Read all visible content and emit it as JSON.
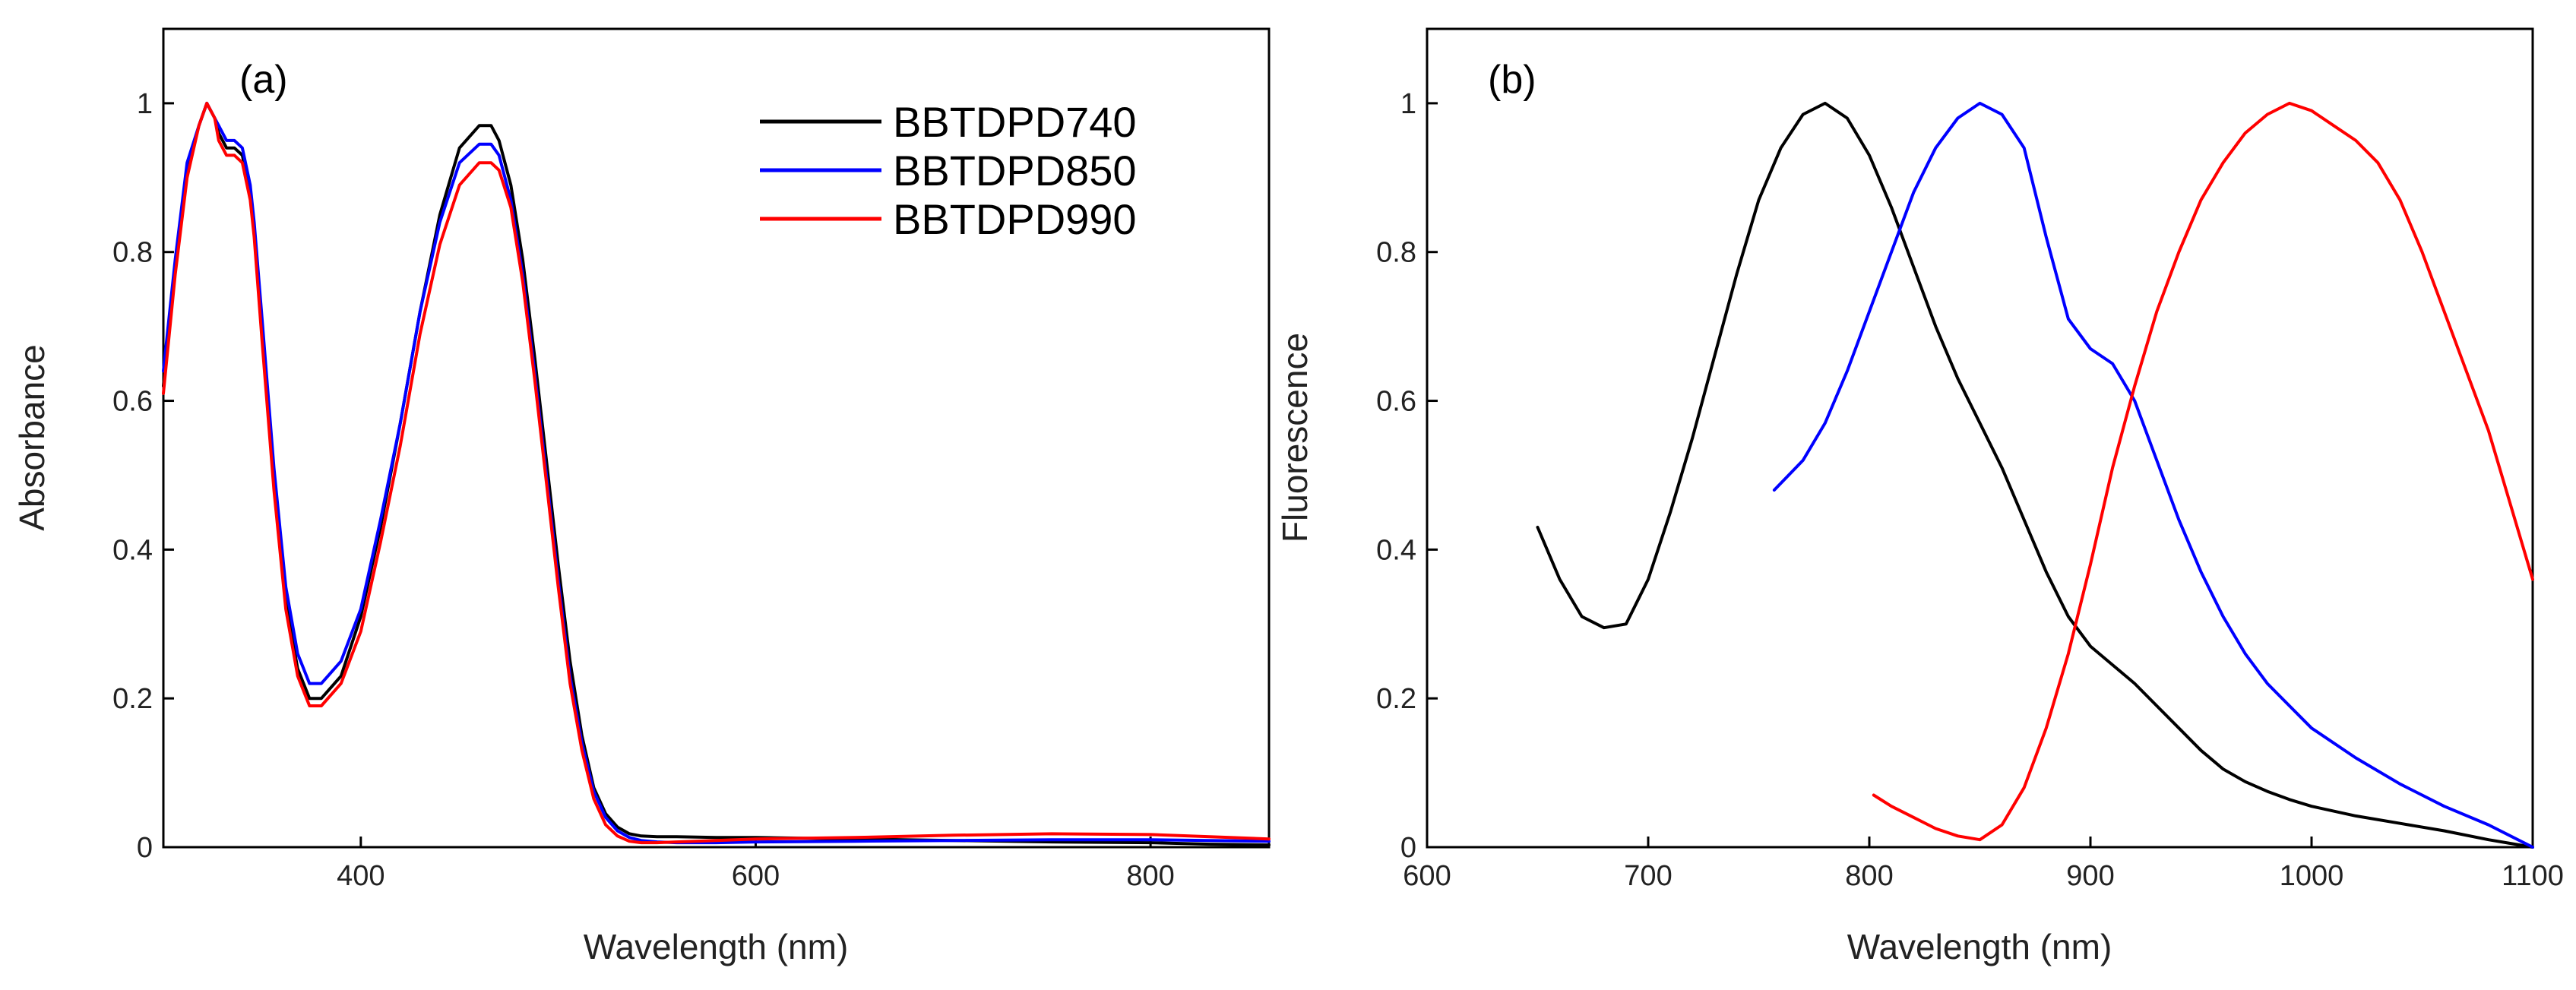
{
  "chart_data": [
    {
      "id": "a",
      "type": "line",
      "panel_label": "(a)",
      "title": "",
      "xlabel": "Wavelength (nm)",
      "ylabel": "Absorbance",
      "xlim": [
        300,
        860
      ],
      "ylim": [
        0,
        1.1
      ],
      "xticks": [
        400,
        600,
        800
      ],
      "yticks": [
        0,
        0.2,
        0.4,
        0.6,
        0.8,
        1
      ],
      "ytick_labels": [
        "0",
        "0.2",
        "0.4",
        "0.6",
        "0.8",
        "1"
      ],
      "grid": false,
      "legend_position": "top-right",
      "series": [
        {
          "name": "BBTDPD740",
          "color": "#000000",
          "x": [
            300,
            306,
            312,
            318,
            322,
            326,
            328,
            332,
            336,
            340,
            344,
            346,
            350,
            356,
            362,
            368,
            374,
            380,
            390,
            400,
            410,
            420,
            430,
            440,
            450,
            460,
            466,
            470,
            476,
            482,
            488,
            494,
            500,
            506,
            512,
            518,
            524,
            530,
            536,
            542,
            550,
            560,
            580,
            600,
            650,
            700,
            750,
            800,
            830,
            860
          ],
          "values": [
            0.62,
            0.78,
            0.91,
            0.97,
            1.0,
            0.98,
            0.96,
            0.94,
            0.94,
            0.93,
            0.88,
            0.83,
            0.69,
            0.49,
            0.33,
            0.24,
            0.2,
            0.2,
            0.23,
            0.31,
            0.43,
            0.57,
            0.72,
            0.85,
            0.94,
            0.97,
            0.97,
            0.95,
            0.89,
            0.79,
            0.66,
            0.52,
            0.38,
            0.25,
            0.15,
            0.08,
            0.045,
            0.027,
            0.018,
            0.015,
            0.014,
            0.014,
            0.013,
            0.013,
            0.011,
            0.009,
            0.007,
            0.006,
            0.004,
            0.003
          ]
        },
        {
          "name": "BBTDPD850",
          "color": "#0000ff",
          "x": [
            300,
            306,
            312,
            318,
            322,
            326,
            328,
            332,
            336,
            340,
            344,
            346,
            350,
            356,
            362,
            368,
            374,
            380,
            390,
            400,
            410,
            420,
            430,
            440,
            450,
            460,
            466,
            470,
            476,
            482,
            488,
            494,
            500,
            506,
            512,
            518,
            524,
            530,
            536,
            542,
            550,
            560,
            580,
            600,
            650,
            700,
            750,
            800,
            830,
            860
          ],
          "values": [
            0.64,
            0.79,
            0.92,
            0.97,
            1.0,
            0.98,
            0.97,
            0.95,
            0.95,
            0.94,
            0.89,
            0.84,
            0.71,
            0.51,
            0.35,
            0.26,
            0.22,
            0.22,
            0.25,
            0.32,
            0.44,
            0.57,
            0.72,
            0.84,
            0.92,
            0.945,
            0.945,
            0.93,
            0.87,
            0.77,
            0.64,
            0.5,
            0.36,
            0.23,
            0.14,
            0.075,
            0.04,
            0.022,
            0.013,
            0.009,
            0.007,
            0.006,
            0.006,
            0.007,
            0.008,
            0.009,
            0.01,
            0.01,
            0.009,
            0.008
          ]
        },
        {
          "name": "BBTDPD990",
          "color": "#ff0000",
          "x": [
            300,
            306,
            312,
            318,
            322,
            326,
            328,
            332,
            336,
            340,
            344,
            346,
            350,
            356,
            362,
            368,
            374,
            380,
            390,
            400,
            410,
            420,
            430,
            440,
            450,
            460,
            466,
            470,
            476,
            482,
            488,
            494,
            500,
            506,
            512,
            518,
            524,
            530,
            536,
            542,
            550,
            560,
            580,
            600,
            650,
            700,
            750,
            800,
            830,
            860
          ],
          "values": [
            0.61,
            0.77,
            0.9,
            0.97,
            1.0,
            0.98,
            0.95,
            0.93,
            0.93,
            0.92,
            0.87,
            0.82,
            0.68,
            0.48,
            0.32,
            0.23,
            0.19,
            0.19,
            0.22,
            0.29,
            0.41,
            0.54,
            0.69,
            0.81,
            0.89,
            0.92,
            0.92,
            0.91,
            0.86,
            0.76,
            0.63,
            0.49,
            0.35,
            0.22,
            0.13,
            0.065,
            0.03,
            0.015,
            0.008,
            0.006,
            0.006,
            0.007,
            0.009,
            0.011,
            0.013,
            0.016,
            0.018,
            0.017,
            0.014,
            0.011
          ]
        }
      ]
    },
    {
      "id": "b",
      "type": "line",
      "panel_label": "(b)",
      "title": "",
      "xlabel": "Wavelength (nm)",
      "ylabel": "Fluorescence",
      "xlim": [
        600,
        1100
      ],
      "ylim": [
        0,
        1.1
      ],
      "xticks": [
        600,
        700,
        800,
        900,
        1000,
        1100
      ],
      "yticks": [
        0,
        0.2,
        0.4,
        0.6,
        0.8,
        1
      ],
      "ytick_labels": [
        "0",
        "0.2",
        "0.4",
        "0.6",
        "0.8",
        "1"
      ],
      "grid": false,
      "series": [
        {
          "name": "BBTDPD740",
          "color": "#000000",
          "x": [
            650,
            660,
            670,
            680,
            690,
            700,
            710,
            720,
            730,
            740,
            750,
            760,
            770,
            780,
            790,
            800,
            810,
            820,
            830,
            840,
            850,
            860,
            870,
            880,
            890,
            900,
            910,
            920,
            930,
            940,
            950,
            960,
            970,
            980,
            990,
            1000,
            1020,
            1040,
            1060,
            1080,
            1100
          ],
          "values": [
            0.43,
            0.36,
            0.31,
            0.295,
            0.3,
            0.36,
            0.45,
            0.55,
            0.66,
            0.77,
            0.87,
            0.94,
            0.985,
            1.0,
            0.98,
            0.93,
            0.86,
            0.78,
            0.7,
            0.63,
            0.57,
            0.51,
            0.44,
            0.37,
            0.31,
            0.27,
            0.245,
            0.22,
            0.19,
            0.16,
            0.13,
            0.105,
            0.088,
            0.075,
            0.064,
            0.055,
            0.042,
            0.032,
            0.022,
            0.01,
            0.0
          ]
        },
        {
          "name": "BBTDPD850",
          "color": "#0000ff",
          "x": [
            757,
            770,
            780,
            790,
            800,
            810,
            820,
            830,
            840,
            850,
            860,
            870,
            880,
            890,
            900,
            910,
            920,
            930,
            940,
            950,
            960,
            970,
            980,
            990,
            1000,
            1020,
            1040,
            1060,
            1080,
            1100
          ],
          "values": [
            0.48,
            0.52,
            0.57,
            0.64,
            0.72,
            0.8,
            0.88,
            0.94,
            0.98,
            1.0,
            0.985,
            0.94,
            0.82,
            0.71,
            0.67,
            0.65,
            0.6,
            0.52,
            0.44,
            0.37,
            0.31,
            0.26,
            0.22,
            0.19,
            0.16,
            0.12,
            0.085,
            0.055,
            0.03,
            0.0
          ]
        },
        {
          "name": "BBTDPD990",
          "color": "#ff0000",
          "x": [
            802,
            810,
            820,
            830,
            840,
            850,
            860,
            870,
            880,
            890,
            900,
            910,
            920,
            930,
            940,
            950,
            960,
            970,
            980,
            990,
            1000,
            1010,
            1020,
            1030,
            1040,
            1050,
            1060,
            1070,
            1080,
            1090,
            1100
          ],
          "values": [
            0.07,
            0.055,
            0.04,
            0.025,
            0.015,
            0.01,
            0.03,
            0.08,
            0.16,
            0.26,
            0.38,
            0.51,
            0.62,
            0.72,
            0.8,
            0.87,
            0.92,
            0.96,
            0.985,
            1.0,
            0.99,
            0.97,
            0.95,
            0.92,
            0.87,
            0.8,
            0.72,
            0.64,
            0.56,
            0.46,
            0.36
          ]
        }
      ]
    }
  ]
}
